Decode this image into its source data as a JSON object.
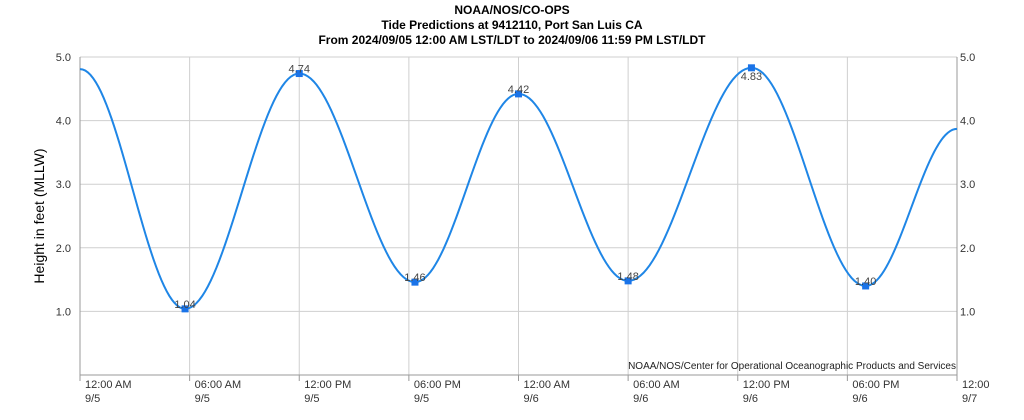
{
  "chart_data": {
    "type": "line",
    "title": "NOAA/NOS/CO-OPS",
    "subtitle": "Tide Predictions at 9412110, Port San Luis CA",
    "subtitle2": "From 2024/09/05 12:00 AM LST/LDT to 2024/09/06 11:59 PM LST/LDT",
    "ylabel": "Height in feet (MLLW)",
    "credit": "NOAA/NOS/Center for Operational Oceanographic Products and Services",
    "ylim": [
      0,
      5
    ],
    "xlim": [
      "2024-09-05 00:00",
      "2024-09-07 00:00"
    ],
    "yticks": [
      "1.0",
      "2.0",
      "3.0",
      "4.0",
      "5.0"
    ],
    "yticks_right": [
      "1.0",
      "2.0",
      "3.0",
      "4.0",
      "5.0"
    ],
    "xticks": [
      {
        "time": "2024-09-05 00:00",
        "line1": "12:00 AM",
        "line2": "9/5"
      },
      {
        "time": "2024-09-05 06:00",
        "line1": "06:00 AM",
        "line2": "9/5"
      },
      {
        "time": "2024-09-05 12:00",
        "line1": "12:00 PM",
        "line2": "9/5"
      },
      {
        "time": "2024-09-05 18:00",
        "line1": "06:00 PM",
        "line2": "9/5"
      },
      {
        "time": "2024-09-06 00:00",
        "line1": "12:00 AM",
        "line2": "9/6"
      },
      {
        "time": "2024-09-06 06:00",
        "line1": "06:00 AM",
        "line2": "9/6"
      },
      {
        "time": "2024-09-06 12:00",
        "line1": "12:00 PM",
        "line2": "9/6"
      },
      {
        "time": "2024-09-06 18:00",
        "line1": "06:00 PM",
        "line2": "9/6"
      },
      {
        "time": "2024-09-07 00:00",
        "line1": "12:00",
        "line2": "9/7"
      }
    ],
    "grid": true,
    "line_color": "#1f86e6",
    "marker_color": "#1a73e8",
    "series": [
      {
        "points": [
          {
            "x": "2024-09-05 00:00",
            "y": 4.81
          },
          {
            "x": "2024-09-05 05:45",
            "y": 1.04,
            "label": "1.04"
          },
          {
            "x": "2024-09-05 12:00",
            "y": 4.74,
            "label": "4.74"
          },
          {
            "x": "2024-09-05 18:20",
            "y": 1.46,
            "label": "1.46"
          },
          {
            "x": "2024-09-06 00:00",
            "y": 4.42,
            "label": "4.42"
          },
          {
            "x": "2024-09-06 06:00",
            "y": 1.48,
            "label": "1.48"
          },
          {
            "x": "2024-09-06 12:45",
            "y": 4.83,
            "label": "4.83"
          },
          {
            "x": "2024-09-06 19:00",
            "y": 1.4,
            "label": "1.40"
          },
          {
            "x": "2024-09-07 00:00",
            "y": 3.87
          }
        ]
      }
    ]
  }
}
